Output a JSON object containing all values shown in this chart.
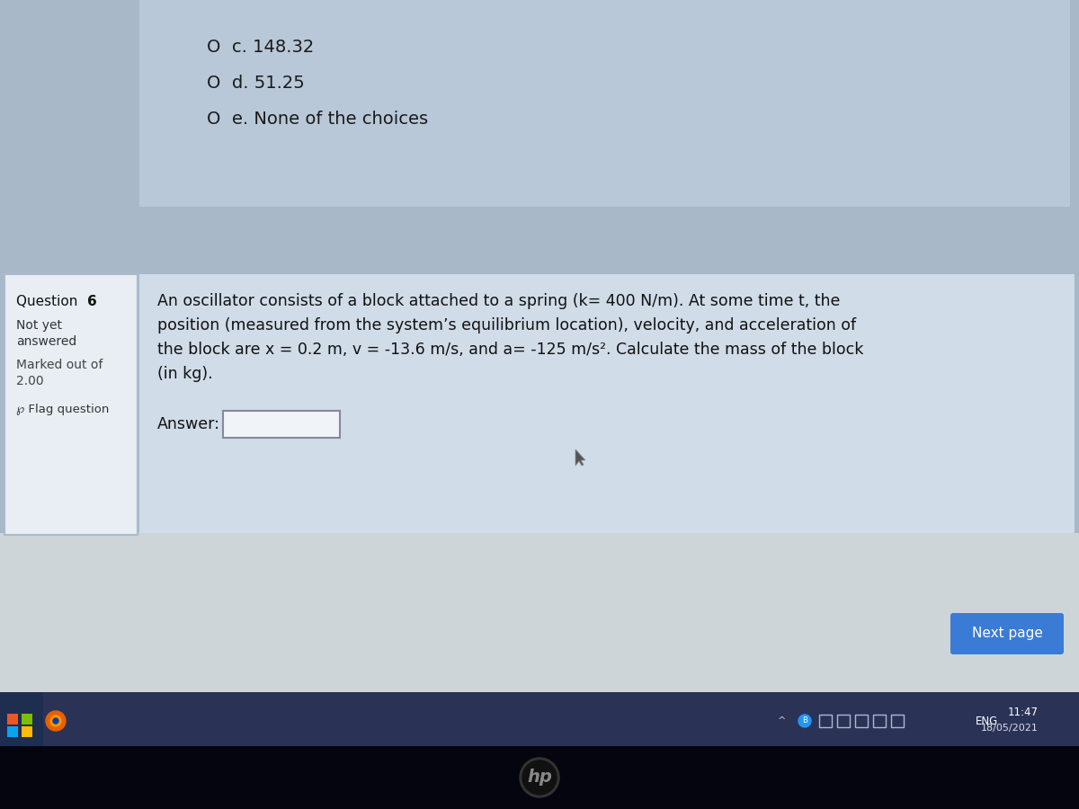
{
  "bg_color": "#a8b8c8",
  "top_section_bg": "#b8c8d8",
  "question_section_bg": "#d0dce8",
  "sidebar_bg": "#e8eef4",
  "sidebar_border": "#aabbcc",
  "answer_box_bg": "#f0f4f8",
  "answer_box_border": "#888899",
  "next_btn_bg": "#3a7bd5",
  "next_btn_text_color": "#ffffff",
  "taskbar_bg": "#2a3356",
  "taskbar_text_color": "#ffffff",
  "bottom_dark_bg": "#050510",
  "screen_bg": "#c8d4dc",
  "option_c": "O  c. 148.32",
  "option_d": "O  d. 51.25",
  "option_e": "O  e. None of the choices",
  "question_number_plain": "Question ",
  "question_number_bold": "6",
  "sidebar_line1": "Not yet",
  "sidebar_line2": "answered",
  "sidebar_line3": "Marked out of",
  "sidebar_line4": "2.00",
  "sidebar_line5": "℘ Flag question",
  "question_text_line1": "An oscillator consists of a block attached to a spring (k= 400 N/m). At some time t, the",
  "question_text_line2": "position (measured from the system’s equilibrium location), velocity, and acceleration of",
  "question_text_line3": "the block are x = 0.2 m, v = -13.6 m/s, and a= -125 m/s². Calculate the mass of the block",
  "question_text_line4": "(in kg).",
  "answer_label": "Answer:",
  "next_page_text": "Next page",
  "time_text": "11:47",
  "date_text": "18/05/2021",
  "eng_text": "ENG"
}
